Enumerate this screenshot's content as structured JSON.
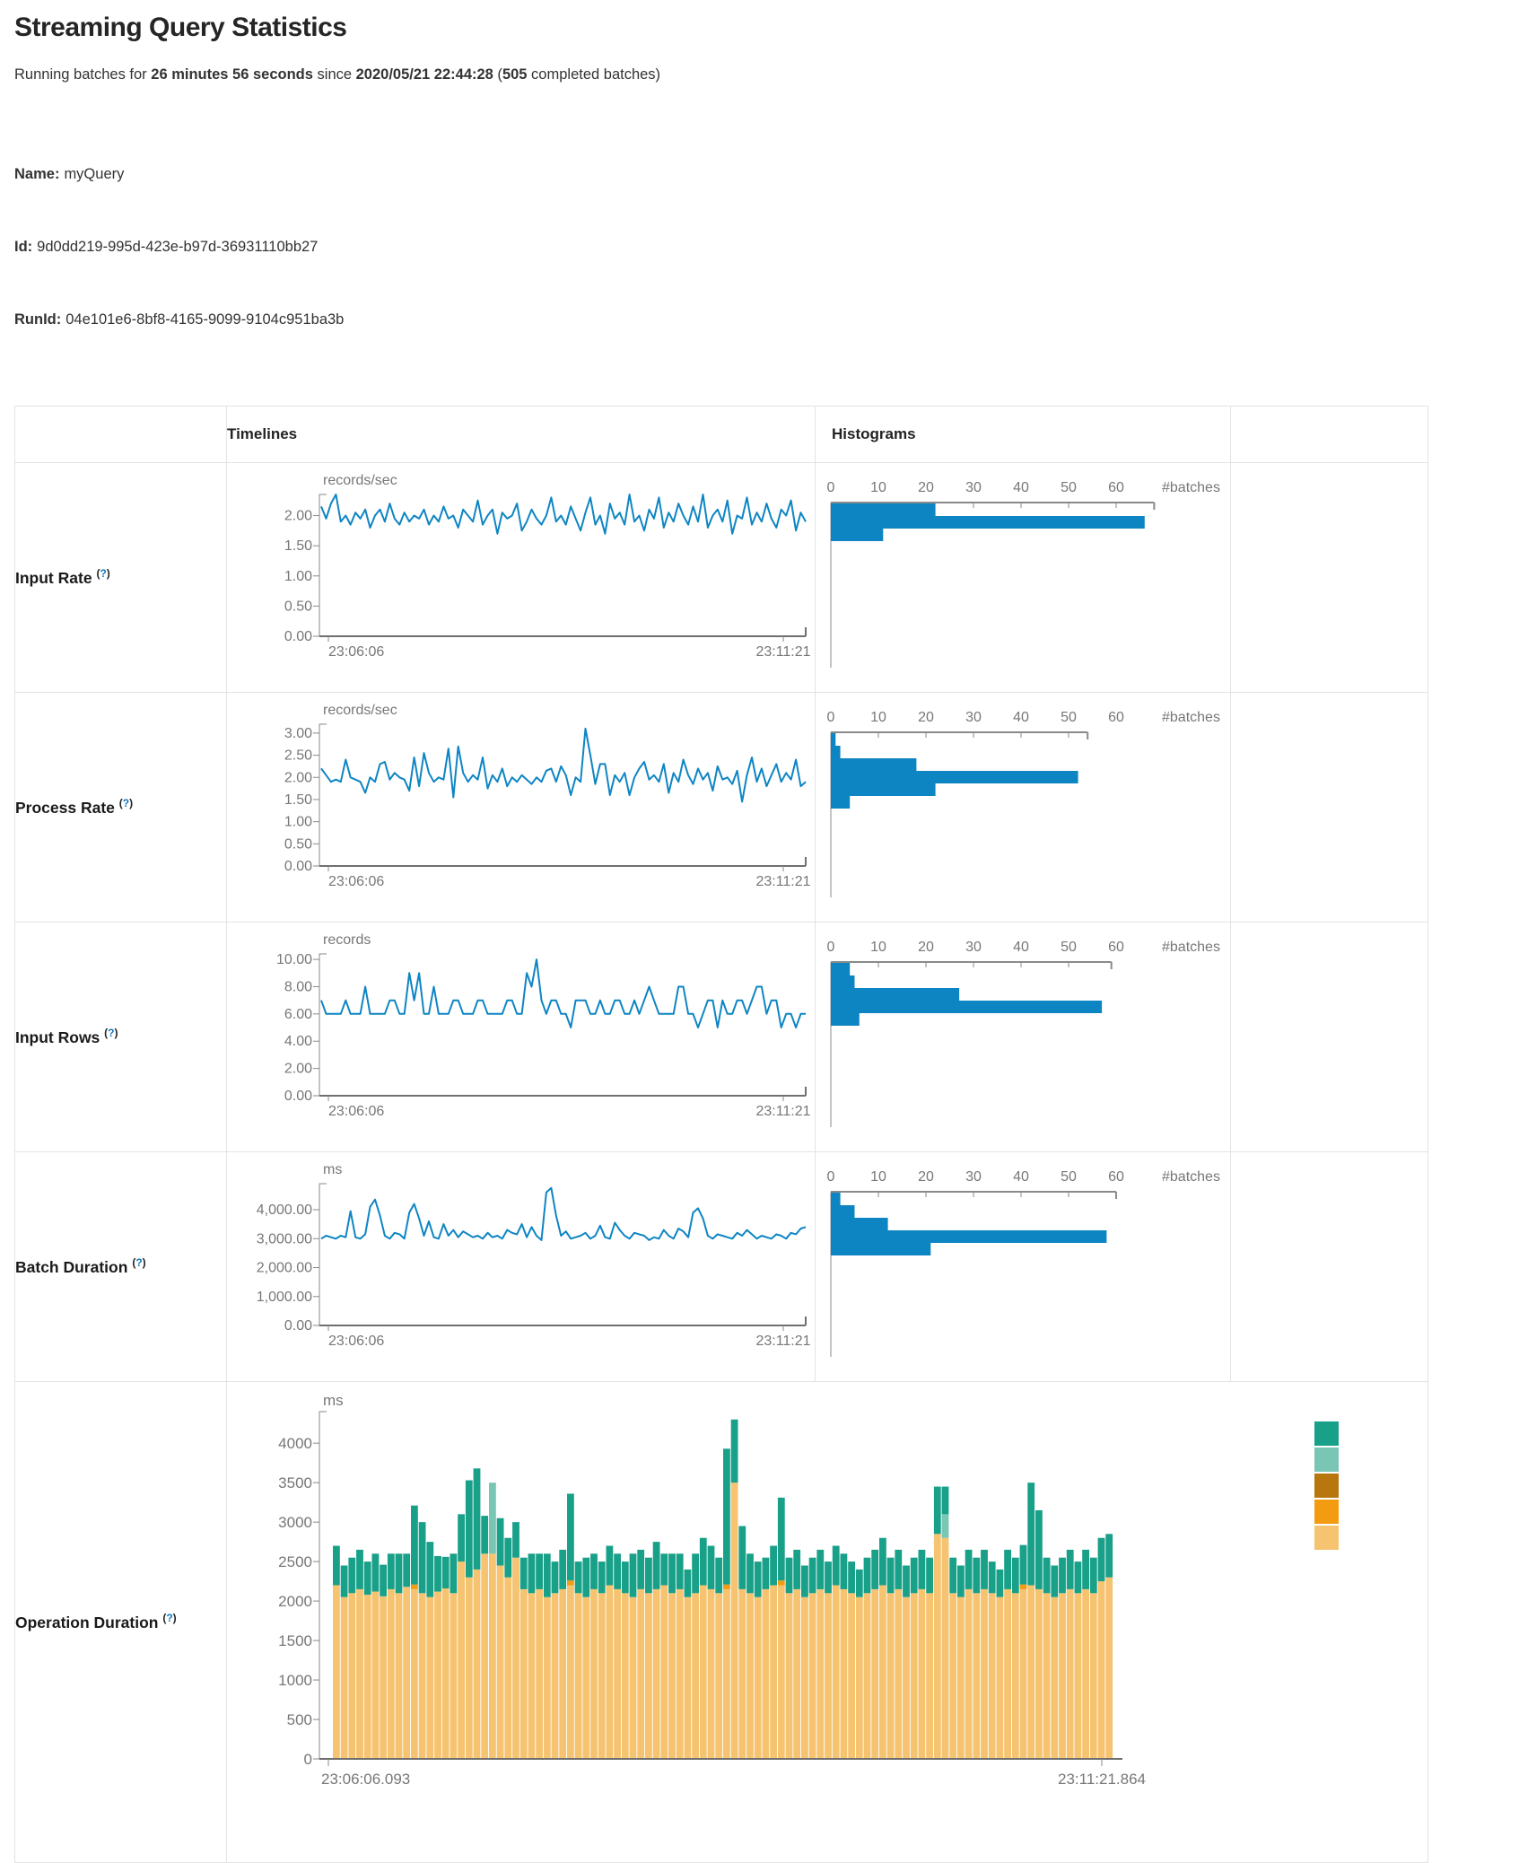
{
  "page": {
    "title": "Streaming Query Statistics",
    "subtitle": {
      "prefix": "Running batches for ",
      "duration": "26 minutes 56 seconds",
      "mid": " since ",
      "start_time": "2020/05/21 22:44:28",
      "paren_open": " (",
      "batches_count": "505",
      "suffix": " completed batches)"
    },
    "query": {
      "name_label": "Name:",
      "name": "myQuery",
      "id_label": "Id:",
      "id": "9d0dd219-995d-423e-b97d-36931110bb27",
      "runid_label": "RunId:",
      "runid": "04e101e6-8bf8-4165-9099-9104c951ba3b"
    }
  },
  "table": {
    "headers": {
      "timelines": "Timelines",
      "histograms": "Histograms"
    },
    "help_open": "(",
    "help_q": "?",
    "help_close": ")",
    "rows": [
      {
        "label": "Input Rate"
      },
      {
        "label": "Process Rate"
      },
      {
        "label": "Input Rows"
      },
      {
        "label": "Batch Duration"
      },
      {
        "label": "Operation Duration"
      }
    ]
  },
  "colors": {
    "line_blue": "#0e85c3",
    "hist_blue": "#0e85c3",
    "axis_gray": "#8a8a8a",
    "tick_text": "#777777",
    "teal": "#18a088",
    "light_teal": "#79c6b5",
    "dark_orange": "#b8770e",
    "orange": "#f39c12",
    "tan": "#f6c370"
  },
  "chart_data": [
    {
      "row": "Input Rate",
      "timeline": {
        "type": "line",
        "unit": "records/sec",
        "line_color": "#0e85c3",
        "x_start": "23:06:06",
        "x_end": "23:11:21",
        "y_ticks": [
          "0.00",
          "0.50",
          "1.00",
          "1.50",
          "2.00"
        ],
        "y_tick_values": [
          0,
          0.5,
          1,
          1.5,
          2
        ],
        "y_max": 2.35,
        "values": [
          2.15,
          1.95,
          2.2,
          2.35,
          1.9,
          2.0,
          1.85,
          2.05,
          1.95,
          2.1,
          1.8,
          2.0,
          2.1,
          1.9,
          2.2,
          1.95,
          1.85,
          2.05,
          1.9,
          2.0,
          1.95,
          2.1,
          1.85,
          2.0,
          1.9,
          2.15,
          1.95,
          2.0,
          1.8,
          2.1,
          2.0,
          1.9,
          2.25,
          1.85,
          2.0,
          2.1,
          1.7,
          2.05,
          1.95,
          2.0,
          2.2,
          1.75,
          1.9,
          2.1,
          1.95,
          1.85,
          2.0,
          2.3,
          1.9,
          2.0,
          1.85,
          2.15,
          1.95,
          1.75,
          2.05,
          2.3,
          1.85,
          2.0,
          1.7,
          2.2,
          1.95,
          2.05,
          1.85,
          2.35,
          1.9,
          2.0,
          1.75,
          2.1,
          1.95,
          2.3,
          1.8,
          2.05,
          1.9,
          2.2,
          2.0,
          1.85,
          2.15,
          1.9,
          2.35,
          1.8,
          2.0,
          2.1,
          1.9,
          2.25,
          1.7,
          2.0,
          1.95,
          2.3,
          1.85,
          2.05,
          1.9,
          2.2,
          1.95,
          1.8,
          2.1,
          2.0,
          2.25,
          1.75,
          2.05,
          1.9
        ]
      },
      "histogram": {
        "type": "bar",
        "orientation": "horizontal",
        "bar_color": "#0e85c3",
        "x_label": "#batches",
        "x_ticks": [
          0,
          10,
          20,
          30,
          40,
          50,
          60
        ],
        "x_max": 70,
        "values": [
          22,
          66,
          11
        ]
      }
    },
    {
      "row": "Process Rate",
      "timeline": {
        "type": "line",
        "unit": "records/sec",
        "line_color": "#0e85c3",
        "x_start": "23:06:06",
        "x_end": "23:11:21",
        "y_ticks": [
          "0.00",
          "0.50",
          "1.00",
          "1.50",
          "2.00",
          "2.50",
          "3.00"
        ],
        "y_tick_values": [
          0,
          0.5,
          1,
          1.5,
          2,
          2.5,
          3
        ],
        "y_max": 3.2,
        "values": [
          2.2,
          2.05,
          1.9,
          1.95,
          1.9,
          2.4,
          2.0,
          1.95,
          1.9,
          1.65,
          2.0,
          1.9,
          2.3,
          2.35,
          1.95,
          2.1,
          2.0,
          1.95,
          1.7,
          2.45,
          1.8,
          2.55,
          2.1,
          1.9,
          2.0,
          1.95,
          2.65,
          1.55,
          2.7,
          2.1,
          1.9,
          2.05,
          1.95,
          2.45,
          1.75,
          2.05,
          1.9,
          2.2,
          1.8,
          2.0,
          1.9,
          2.05,
          1.95,
          1.85,
          2.0,
          1.9,
          2.15,
          2.2,
          1.9,
          2.25,
          2.05,
          1.6,
          2.0,
          1.9,
          3.1,
          2.5,
          1.85,
          2.3,
          2.3,
          1.6,
          2.05,
          1.9,
          2.1,
          1.6,
          2.0,
          2.2,
          2.35,
          1.95,
          2.05,
          1.9,
          2.3,
          1.65,
          2.1,
          1.9,
          2.4,
          2.05,
          1.85,
          2.2,
          1.95,
          2.1,
          1.7,
          2.25,
          1.95,
          2.0,
          1.85,
          2.15,
          1.45,
          2.05,
          2.45,
          1.9,
          2.2,
          1.8,
          2.05,
          2.3,
          1.9,
          2.1,
          1.95,
          2.4,
          1.8,
          1.9
        ]
      },
      "histogram": {
        "type": "bar",
        "orientation": "horizontal",
        "bar_color": "#0e85c3",
        "x_label": "#batches",
        "x_ticks": [
          0,
          10,
          20,
          30,
          40,
          50,
          60
        ],
        "x_max": 70,
        "values": [
          1,
          2,
          18,
          52,
          22,
          4
        ]
      }
    },
    {
      "row": "Input Rows",
      "timeline": {
        "type": "line",
        "unit": "records",
        "line_color": "#0e85c3",
        "x_start": "23:06:06",
        "x_end": "23:11:21",
        "y_ticks": [
          "0.00",
          "2.00",
          "4.00",
          "6.00",
          "8.00",
          "10.00"
        ],
        "y_tick_values": [
          0,
          2,
          4,
          6,
          8,
          10
        ],
        "y_max": 10.4,
        "values": [
          7,
          6,
          6,
          6,
          6,
          7,
          6,
          6,
          6,
          8,
          6,
          6,
          6,
          6,
          7,
          7,
          6,
          6,
          9,
          7,
          9,
          6,
          6,
          8,
          6,
          6,
          6,
          7,
          7,
          6,
          6,
          6,
          7,
          7,
          6,
          6,
          6,
          6,
          7,
          7,
          6,
          6,
          9,
          8,
          10,
          7,
          6,
          7,
          7,
          6,
          6,
          5,
          7,
          7,
          7,
          6,
          6,
          7,
          6,
          6,
          7,
          7,
          6,
          6,
          7,
          6,
          7,
          8,
          7,
          6,
          6,
          6,
          6,
          8,
          8,
          6,
          6,
          5,
          6,
          7,
          7,
          5,
          7,
          6,
          6,
          7,
          7,
          6,
          7,
          8,
          8,
          6,
          7,
          7,
          5,
          6,
          6,
          5,
          6,
          6
        ]
      },
      "histogram": {
        "type": "bar",
        "orientation": "horizontal",
        "bar_color": "#0e85c3",
        "x_label": "#batches",
        "x_ticks": [
          0,
          10,
          20,
          30,
          40,
          50,
          60
        ],
        "x_max": 70,
        "values": [
          4,
          5,
          27,
          57,
          6
        ]
      }
    },
    {
      "row": "Batch Duration",
      "timeline": {
        "type": "line",
        "unit": "ms",
        "line_color": "#0e85c3",
        "x_start": "23:06:06",
        "x_end": "23:11:21",
        "y_ticks": [
          "0.00",
          "1,000.00",
          "2,000.00",
          "3,000.00",
          "4,000.00"
        ],
        "y_tick_values": [
          0,
          1000,
          2000,
          3000,
          4000
        ],
        "y_max": 4900,
        "values": [
          3000,
          3100,
          3050,
          3000,
          3100,
          3050,
          3950,
          3050,
          3000,
          3150,
          4100,
          4350,
          3800,
          3100,
          3000,
          3200,
          3150,
          3000,
          3900,
          4200,
          3700,
          3100,
          3600,
          3050,
          3000,
          3500,
          3100,
          3300,
          3050,
          3250,
          3150,
          3050,
          3100,
          3000,
          3200,
          3050,
          3100,
          3000,
          3300,
          3200,
          3150,
          3500,
          3050,
          3400,
          3100,
          2950,
          4600,
          4750,
          3800,
          3100,
          3250,
          3000,
          3050,
          3100,
          3200,
          3000,
          3100,
          3450,
          3050,
          3000,
          3550,
          3300,
          3100,
          3000,
          3200,
          3150,
          3100,
          2950,
          3050,
          3000,
          3300,
          3100,
          3000,
          3350,
          3250,
          3050,
          3900,
          4050,
          3700,
          3100,
          3000,
          3150,
          3100,
          3050,
          3000,
          3200,
          3100,
          3300,
          3150,
          3000,
          3100,
          3050,
          3000,
          3150,
          3100,
          3000,
          3200,
          3150,
          3350,
          3400
        ]
      },
      "histogram": {
        "type": "bar",
        "orientation": "horizontal",
        "bar_color": "#0e85c3",
        "x_label": "#batches",
        "x_ticks": [
          0,
          10,
          20,
          30,
          40,
          50,
          60
        ],
        "x_max": 70,
        "values": [
          2,
          5,
          12,
          58,
          21
        ]
      }
    },
    {
      "row": "Operation Duration",
      "stacked": {
        "type": "bar-stacked",
        "unit": "ms",
        "x_start": "23:06:06.093",
        "x_end": "23:11:21.864",
        "y_ticks": [
          "0",
          "500",
          "1000",
          "1500",
          "2000",
          "2500",
          "3000",
          "3500",
          "4000"
        ],
        "y_tick_values": [
          0,
          500,
          1000,
          1500,
          2000,
          2500,
          3000,
          3500,
          4000
        ],
        "y_max": 4400,
        "legend_colors": [
          "#18a088",
          "#79c6b5",
          "#b8770e",
          "#f39c12",
          "#f6c370"
        ],
        "series": [
          {
            "name": "tan",
            "color": "#f6c370",
            "values": [
              2200,
              2050,
              2100,
              2150,
              2080,
              2120,
              2060,
              2150,
              2100,
              2180,
              2150,
              2100,
              2050,
              2120,
              2160,
              2100,
              2500,
              2300,
              2400,
              2600,
              2600,
              2450,
              2300,
              2550,
              2150,
              2100,
              2150,
              2050,
              2100,
              2150,
              2200,
              2100,
              2050,
              2150,
              2100,
              2200,
              2150,
              2100,
              2050,
              2150,
              2100,
              2150,
              2200,
              2100,
              2150,
              2050,
              2100,
              2200,
              2150,
              2100,
              2150,
              3500,
              2150,
              2100,
              2050,
              2150,
              2200,
              2200,
              2100,
              2150,
              2050,
              2100,
              2150,
              2100,
              2200,
              2150,
              2100,
              2050,
              2100,
              2150,
              2200,
              2100,
              2150,
              2050,
              2100,
              2150,
              2100,
              2850,
              2800,
              2100,
              2050,
              2150,
              2100,
              2150,
              2100,
              2050,
              2150,
              2100,
              2150,
              2200,
              2150,
              2100,
              2050,
              2100,
              2150,
              2100,
              2150,
              2100,
              2250,
              2300
            ]
          },
          {
            "name": "orange",
            "color": "#f39c12",
            "values": [
              0,
              0,
              0,
              0,
              0,
              0,
              0,
              0,
              0,
              0,
              60,
              0,
              0,
              0,
              0,
              0,
              0,
              0,
              0,
              0,
              0,
              0,
              0,
              0,
              0,
              0,
              0,
              0,
              0,
              0,
              60,
              0,
              0,
              0,
              0,
              0,
              0,
              0,
              0,
              0,
              0,
              0,
              0,
              0,
              0,
              0,
              0,
              0,
              0,
              0,
              60,
              0,
              0,
              0,
              0,
              0,
              0,
              60,
              0,
              0,
              0,
              0,
              0,
              0,
              0,
              0,
              0,
              0,
              0,
              0,
              0,
              0,
              0,
              0,
              0,
              0,
              0,
              0,
              0,
              0,
              0,
              0,
              0,
              0,
              0,
              0,
              0,
              0,
              60,
              0,
              0,
              0,
              0,
              0,
              0,
              0,
              0,
              0,
              0,
              0
            ]
          },
          {
            "name": "light-teal",
            "color": "#79c6b5",
            "values": [
              0,
              0,
              0,
              0,
              0,
              0,
              0,
              0,
              0,
              0,
              0,
              0,
              0,
              0,
              0,
              0,
              0,
              0,
              0,
              0,
              900,
              0,
              0,
              0,
              0,
              0,
              0,
              0,
              0,
              0,
              0,
              0,
              0,
              0,
              0,
              0,
              0,
              0,
              0,
              0,
              0,
              0,
              0,
              0,
              0,
              0,
              0,
              0,
              0,
              0,
              0,
              0,
              0,
              0,
              0,
              0,
              0,
              0,
              0,
              0,
              0,
              0,
              0,
              0,
              0,
              0,
              0,
              0,
              0,
              0,
              0,
              0,
              0,
              0,
              0,
              0,
              0,
              0,
              300,
              0,
              0,
              0,
              0,
              0,
              0,
              0,
              0,
              0,
              0,
              0,
              0,
              0,
              0,
              0,
              0,
              0,
              0,
              0,
              0,
              0
            ]
          },
          {
            "name": "teal",
            "color": "#18a088",
            "values": [
              500,
              400,
              450,
              500,
              420,
              480,
              400,
              450,
              500,
              420,
              1000,
              900,
              700,
              450,
              400,
              500,
              600,
              1230,
              1280,
              480,
              0,
              600,
              500,
              450,
              400,
              500,
              450,
              550,
              400,
              500,
              1100,
              400,
              500,
              450,
              400,
              500,
              450,
              400,
              550,
              500,
              450,
              600,
              400,
              500,
              450,
              350,
              500,
              600,
              550,
              450,
              1720,
              800,
              800,
              500,
              450,
              400,
              500,
              1050,
              450,
              500,
              400,
              450,
              500,
              400,
              500,
              450,
              400,
              350,
              450,
              500,
              600,
              450,
              500,
              400,
              450,
              500,
              450,
              600,
              350,
              450,
              400,
              500,
              450,
              500,
              400,
              350,
              500,
              450,
              500,
              1300,
              1000,
              450,
              400,
              450,
              500,
              400,
              500,
              450,
              550,
              550
            ]
          }
        ]
      }
    }
  ]
}
